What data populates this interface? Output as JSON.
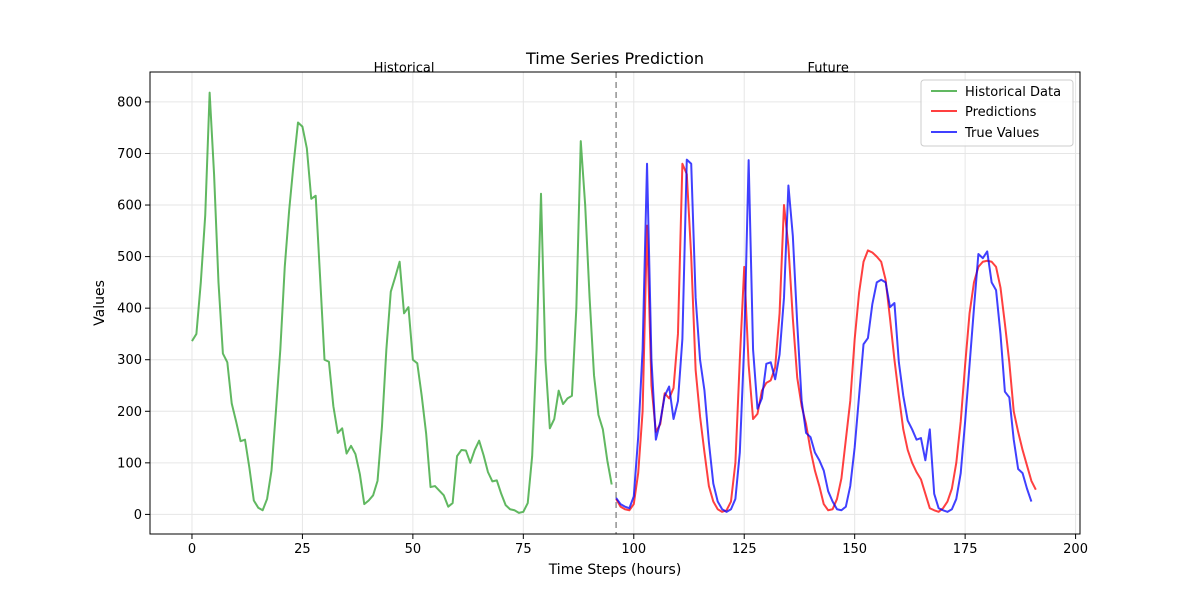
{
  "chart_data": {
    "type": "line",
    "title": "Time Series Prediction",
    "xlabel": "Time Steps (hours)",
    "ylabel": "Values",
    "xlim": [
      -9.5,
      201
    ],
    "ylim": [
      -38,
      858
    ],
    "xticks": [
      0,
      25,
      50,
      75,
      100,
      125,
      150,
      175,
      200
    ],
    "yticks": [
      0,
      100,
      200,
      300,
      400,
      500,
      600,
      700,
      800
    ],
    "grid": true,
    "legend_position": "top-right",
    "divider_x": 96,
    "annotations": [
      {
        "text": "Historical",
        "x": 48
      },
      {
        "text": "Future",
        "x": 144
      }
    ],
    "series": [
      {
        "name": "Historical Data",
        "color": "#2ca02c",
        "x_start": 0,
        "values": [
          336,
          350,
          450,
          580,
          818,
          660,
          450,
          312,
          295,
          215,
          180,
          142,
          145,
          90,
          27,
          13,
          8,
          30,
          85,
          200,
          320,
          480,
          590,
          680,
          760,
          752,
          710,
          612,
          618,
          460,
          300,
          296,
          210,
          158,
          167,
          118,
          133,
          117,
          78,
          20,
          27,
          37,
          65,
          170,
          320,
          432,
          460,
          490,
          390,
          402,
          300,
          293,
          230,
          157,
          53,
          55,
          46,
          37,
          15,
          22,
          113,
          125,
          124,
          100,
          125,
          143,
          115,
          82,
          64,
          66,
          40,
          18,
          10,
          8,
          3,
          5,
          22,
          113,
          320,
          622,
          300,
          167,
          185,
          240,
          214,
          225,
          230,
          400,
          724,
          600,
          420,
          270,
          193,
          165,
          105,
          58
        ]
      },
      {
        "name": "Predictions",
        "color": "#ff0000",
        "x_start": 96,
        "values": [
          30,
          15,
          10,
          8,
          20,
          80,
          200,
          560,
          250,
          160,
          175,
          235,
          225,
          245,
          350,
          680,
          660,
          500,
          280,
          190,
          120,
          55,
          25,
          10,
          5,
          8,
          25,
          100,
          300,
          480,
          290,
          185,
          195,
          240,
          255,
          260,
          285,
          390,
          600,
          520,
          380,
          265,
          210,
          175,
          125,
          85,
          55,
          20,
          8,
          10,
          30,
          70,
          145,
          220,
          340,
          430,
          490,
          512,
          508,
          500,
          490,
          455,
          380,
          300,
          230,
          165,
          125,
          100,
          82,
          68,
          40,
          12,
          8,
          5,
          12,
          25,
          50,
          100,
          180,
          290,
          390,
          450,
          480,
          490,
          492,
          490,
          480,
          440,
          370,
          295,
          200,
          160,
          125,
          95,
          65,
          48
        ]
      },
      {
        "name": "True Values",
        "color": "#0000ff",
        "x_start": 96,
        "values": [
          32,
          20,
          15,
          12,
          35,
          150,
          320,
          680,
          300,
          145,
          180,
          230,
          248,
          185,
          220,
          340,
          688,
          680,
          420,
          300,
          240,
          140,
          60,
          25,
          10,
          5,
          10,
          30,
          120,
          330,
          687,
          320,
          205,
          225,
          292,
          295,
          262,
          310,
          420,
          638,
          540,
          370,
          220,
          158,
          150,
          120,
          105,
          85,
          45,
          25,
          10,
          8,
          15,
          55,
          130,
          230,
          330,
          342,
          408,
          450,
          455,
          450,
          402,
          410,
          295,
          230,
          182,
          165,
          145,
          148,
          105,
          165,
          40,
          12,
          8,
          5,
          10,
          30,
          80,
          180,
          290,
          400,
          505,
          497,
          510,
          450,
          435,
          350,
          238,
          227,
          145,
          88,
          80,
          50,
          25
        ]
      }
    ]
  }
}
